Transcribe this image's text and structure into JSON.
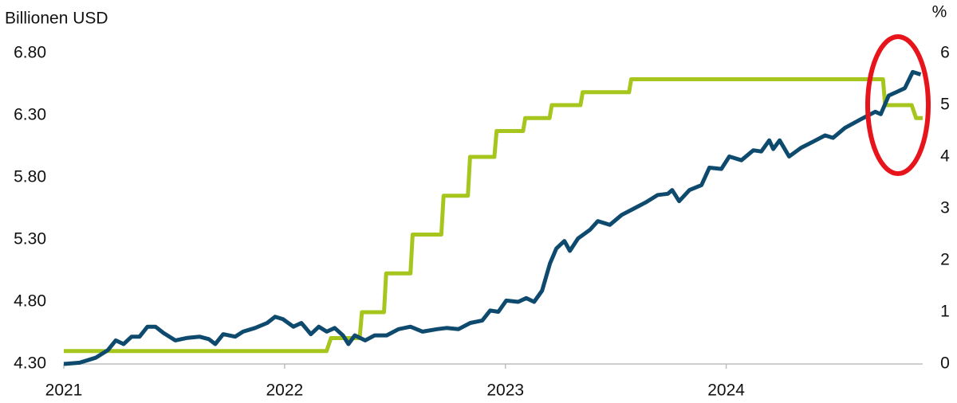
{
  "chart_data": {
    "type": "line",
    "y_label": "Billionen USD",
    "y2_label": "%",
    "xlim": [
      2021,
      2024.89
    ],
    "xticks": [
      2021,
      2022,
      2023,
      2024
    ],
    "ylim": [
      4.3,
      6.8
    ],
    "yticks": [
      {
        "value": 4.3,
        "label": "4.30"
      },
      {
        "value": 4.8,
        "label": "4.80"
      },
      {
        "value": 5.3,
        "label": "5.30"
      },
      {
        "value": 5.8,
        "label": "5.80"
      },
      {
        "value": 6.3,
        "label": "6.30"
      },
      {
        "value": 6.8,
        "label": "6.80"
      }
    ],
    "y2lim": [
      0,
      6
    ],
    "y2ticks": [
      0,
      1,
      2,
      3,
      4,
      5,
      6
    ],
    "grid": false,
    "series": [
      {
        "color": "#0e4a6e",
        "axis": "y",
        "x": [
          2021.0,
          2021.072,
          2021.144,
          2021.199,
          2021.235,
          2021.271,
          2021.307,
          2021.343,
          2021.379,
          2021.415,
          2021.451,
          2021.505,
          2021.56,
          2021.614,
          2021.657,
          2021.686,
          2021.722,
          2021.776,
          2021.812,
          2021.866,
          2021.921,
          2021.957,
          2021.993,
          2022.04,
          2022.076,
          2022.119,
          2022.155,
          2022.191,
          2022.227,
          2022.264,
          2022.289,
          2022.318,
          2022.365,
          2022.408,
          2022.462,
          2022.516,
          2022.57,
          2022.625,
          2022.69,
          2022.733,
          2022.787,
          2022.841,
          2022.895,
          2022.931,
          2022.968,
          2023.004,
          2023.058,
          2023.094,
          2023.13,
          2023.166,
          2023.202,
          2023.231,
          2023.267,
          2023.292,
          2023.329,
          2023.383,
          2023.419,
          2023.473,
          2023.527,
          2023.581,
          2023.635,
          2023.69,
          2023.736,
          2023.755,
          2023.787,
          2023.834,
          2023.888,
          2023.924,
          2023.978,
          2024.014,
          2024.069,
          2024.123,
          2024.159,
          2024.195,
          2024.213,
          2024.242,
          2024.285,
          2024.339,
          2024.394,
          2024.448,
          2024.484,
          2024.538,
          2024.61,
          2024.675,
          2024.7,
          2024.736,
          2024.773,
          2024.809,
          2024.845,
          2024.881
        ],
        "values": [
          4.3,
          4.31,
          4.35,
          4.41,
          4.49,
          4.46,
          4.52,
          4.52,
          4.6,
          4.6,
          4.55,
          4.49,
          4.51,
          4.52,
          4.5,
          4.46,
          4.54,
          4.52,
          4.56,
          4.59,
          4.63,
          4.68,
          4.66,
          4.6,
          4.63,
          4.54,
          4.6,
          4.56,
          4.59,
          4.53,
          4.46,
          4.53,
          4.49,
          4.53,
          4.53,
          4.58,
          4.6,
          4.56,
          4.58,
          4.59,
          4.58,
          4.63,
          4.65,
          4.73,
          4.72,
          4.81,
          4.8,
          4.83,
          4.8,
          4.89,
          5.11,
          5.23,
          5.29,
          5.21,
          5.31,
          5.38,
          5.45,
          5.42,
          5.5,
          5.55,
          5.6,
          5.66,
          5.67,
          5.7,
          5.61,
          5.7,
          5.74,
          5.88,
          5.87,
          5.97,
          5.94,
          6.02,
          6.01,
          6.1,
          6.03,
          6.1,
          5.97,
          6.04,
          6.09,
          6.14,
          6.12,
          6.2,
          6.27,
          6.33,
          6.31,
          6.46,
          6.49,
          6.52,
          6.65,
          6.63
        ]
      },
      {
        "color": "#a6c61e",
        "axis": "y2",
        "x": [
          2021.0,
          2022.19,
          2022.21,
          2022.34,
          2022.35,
          2022.45,
          2022.46,
          2022.57,
          2022.58,
          2022.71,
          2022.72,
          2022.83,
          2022.84,
          2022.95,
          2022.96,
          2023.08,
          2023.09,
          2023.2,
          2023.21,
          2023.34,
          2023.35,
          2023.56,
          2023.57,
          2024.71,
          2024.72,
          2024.84,
          2024.86,
          2024.89
        ],
        "values": [
          0.25,
          0.25,
          0.5,
          0.5,
          1.0,
          1.0,
          1.75,
          1.75,
          2.5,
          2.5,
          3.25,
          3.25,
          4.0,
          4.0,
          4.5,
          4.5,
          4.75,
          4.75,
          5.0,
          5.0,
          5.25,
          5.25,
          5.5,
          5.5,
          5.0,
          5.0,
          4.75,
          4.75
        ]
      }
    ]
  }
}
